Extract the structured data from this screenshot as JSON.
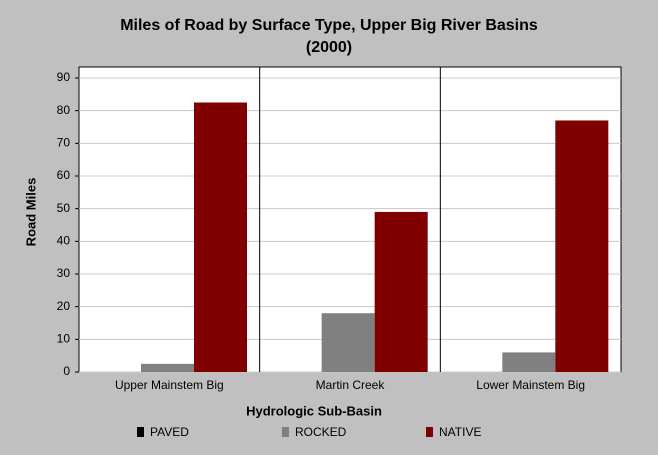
{
  "chart_data": {
    "type": "bar",
    "title": "Miles of Road by Surface Type, Upper Big River Basins",
    "subtitle": "(2000)",
    "x_label": "Hydrologic Sub-Basin",
    "y_label": "Road Miles",
    "categories": [
      "Upper Mainstem Big",
      "Martin Creek",
      "Lower Mainstem Big"
    ],
    "series": [
      {
        "name": "PAVED",
        "color": "#000000",
        "values": [
          0,
          0,
          0
        ]
      },
      {
        "name": "ROCKED",
        "color": "#808080",
        "values": [
          2.5,
          18,
          6
        ]
      },
      {
        "name": "NATIVE",
        "color": "#800000",
        "values": [
          82.5,
          49,
          77
        ]
      }
    ],
    "ylim": [
      0,
      90
    ],
    "yticks": [
      0,
      10,
      20,
      30,
      40,
      50,
      60,
      70,
      80,
      90
    ],
    "grid": true
  }
}
